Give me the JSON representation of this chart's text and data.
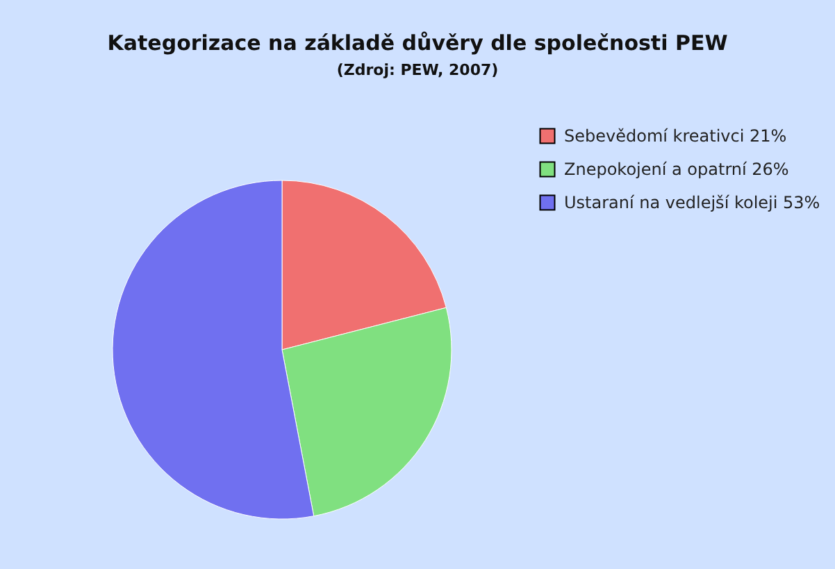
{
  "chart_data": {
    "type": "pie",
    "title": "Kategorizace na základě důvěry dle společnosti PEW",
    "subtitle": "(Zdroj: PEW, 2007)",
    "categories": [
      "Sebevědomí kreativci 21%",
      "Znepokojení a opatrní 26%",
      "Ustaraní na vedlejší koleji 53%"
    ],
    "values": [
      21,
      26,
      53
    ],
    "colors": [
      "#f07070",
      "#80e080",
      "#7070f0"
    ],
    "legend": "top right"
  }
}
